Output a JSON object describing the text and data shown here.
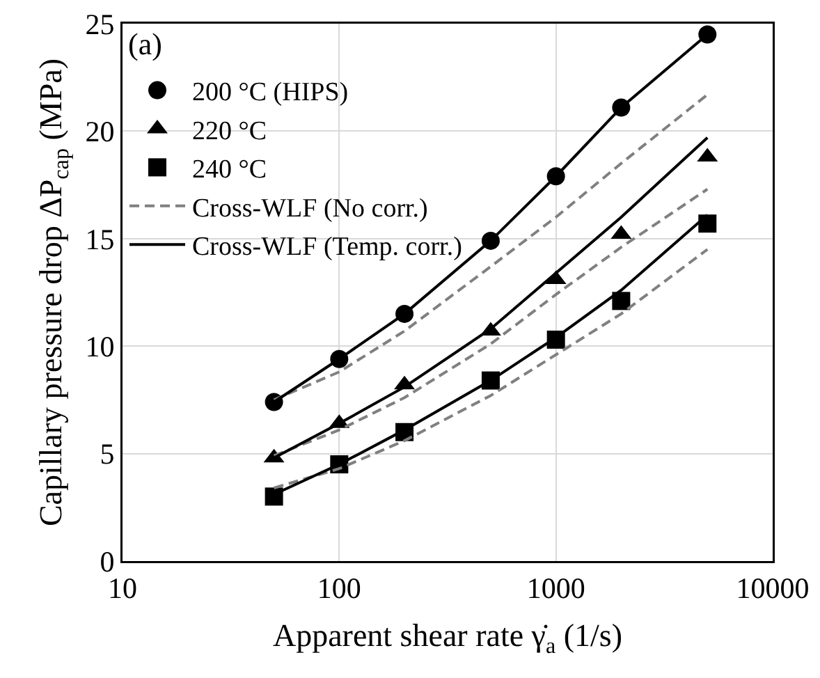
{
  "chart_data": {
    "type": "scatter",
    "xlabel": "Apparent shear rate γ̇$_{a}$ (1/s)",
    "ylabel": "Capillary pressure drop ΔP$_{cap}$ (MPa)",
    "annotations": [
      "(a)"
    ],
    "x": [
      50,
      100,
      200,
      500,
      1000,
      2000,
      5000
    ],
    "log": "x",
    "xlim": [
      10,
      10000
    ],
    "xticks": [
      10,
      100,
      1000,
      10000
    ],
    "ylim": [
      0,
      25
    ],
    "yticks": [
      0,
      5,
      10,
      15,
      20,
      25
    ],
    "grid": true,
    "legend": "top left",
    "series": [
      {
        "name": "200 °C (HIPS)",
        "type": "scatter",
        "marker": "circle",
        "color": "#000000",
        "values": [
          7.4,
          9.4,
          11.5,
          14.9,
          17.9,
          21.1,
          24.5
        ]
      },
      {
        "name": "220 °C",
        "type": "scatter",
        "marker": "triangle",
        "color": "#000000",
        "values": [
          4.8,
          6.4,
          8.2,
          10.7,
          13.1,
          15.2,
          18.8
        ]
      },
      {
        "name": "240 °C",
        "type": "scatter",
        "marker": "square",
        "color": "#000000",
        "values": [
          3.0,
          4.5,
          6.0,
          8.4,
          10.3,
          12.1,
          15.7
        ]
      },
      {
        "name": "Cross-WLF (No corr.)",
        "type": "line",
        "marker": "none",
        "line_style": "dashed",
        "color": "#808080",
        "values": [
          7.5,
          8.8,
          10.7,
          13.7,
          16.0,
          18.5,
          21.7
        ]
      },
      {
        "type": "line",
        "marker": "none",
        "line_style": "dashed",
        "color": "#808080",
        "values": [
          4.9,
          6.1,
          7.6,
          10.1,
          12.4,
          14.6,
          17.3
        ]
      },
      {
        "type": "line",
        "marker": "none",
        "line_style": "dashed",
        "color": "#808080",
        "values": [
          3.4,
          4.3,
          5.6,
          7.7,
          9.6,
          11.5,
          14.5
        ]
      },
      {
        "name": "Cross-WLF (Temp. corr.)",
        "type": "line",
        "marker": "none",
        "line_style": "solid",
        "color": "#000000",
        "values": [
          7.4,
          9.4,
          11.5,
          14.9,
          17.9,
          21.1,
          24.5
        ]
      },
      {
        "type": "line",
        "marker": "none",
        "line_style": "solid",
        "color": "#000000",
        "values": [
          4.8,
          6.4,
          8.1,
          10.8,
          13.4,
          16.0,
          19.7
        ]
      },
      {
        "type": "line",
        "marker": "none",
        "line_style": "solid",
        "color": "#000000",
        "values": [
          3.1,
          4.5,
          6.1,
          8.4,
          10.4,
          12.6,
          16.1
        ]
      }
    ]
  }
}
